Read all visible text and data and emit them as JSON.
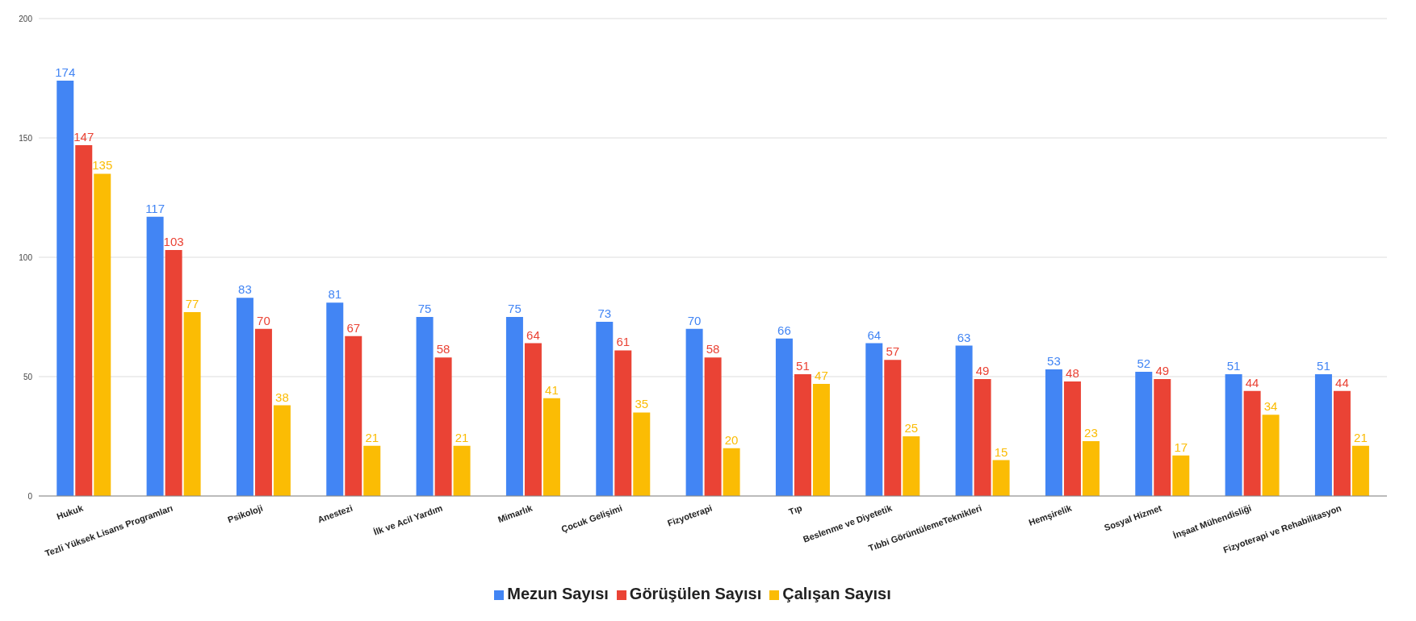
{
  "chart_data": {
    "type": "bar",
    "categories": [
      "Hukuk",
      "Tezli Yüksek Lisans Programları",
      "Psikoloji",
      "Anestezi",
      "İlk ve Acil Yardım",
      "Mimarlık",
      "Çocuk Gelişimi",
      "Fizyoterapi",
      "Tıp",
      "Beslenme ve Diyetetik",
      "Tıbbi GörüntülemeTeknikleri",
      "Hemşirelik",
      "Sosyal Hizmet",
      "İnşaat Mühendisliği",
      "Fizyoterapi ve Rehabilitasyon"
    ],
    "series": [
      {
        "name": "Mezun Sayısı",
        "color": "#4285f4",
        "values": [
          174,
          117,
          83,
          81,
          75,
          75,
          73,
          70,
          66,
          64,
          63,
          53,
          52,
          51,
          51
        ]
      },
      {
        "name": "Görüşülen Sayısı",
        "color": "#ea4335",
        "values": [
          147,
          103,
          70,
          67,
          58,
          64,
          61,
          58,
          51,
          57,
          49,
          48,
          49,
          44,
          44
        ]
      },
      {
        "name": "Çalışan Sayısı",
        "color": "#fbbc04",
        "values": [
          135,
          77,
          38,
          21,
          21,
          41,
          35,
          20,
          47,
          25,
          15,
          23,
          17,
          34,
          21
        ]
      }
    ],
    "ylim": [
      0,
      200
    ],
    "yticks": [
      0,
      50,
      100,
      150,
      200
    ],
    "grid": "y",
    "legend": "bottom",
    "data_labels": true
  }
}
